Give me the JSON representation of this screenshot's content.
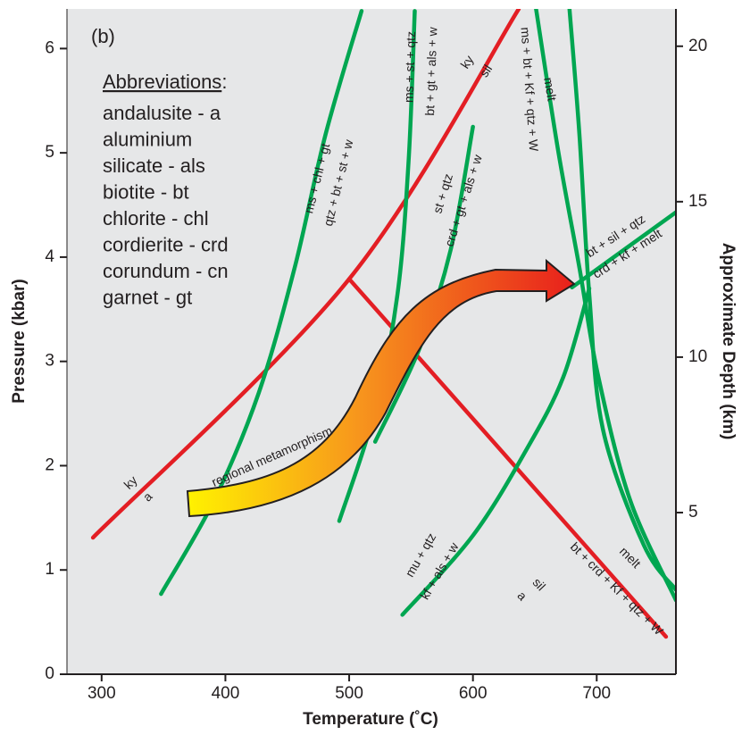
{
  "chart_data": {
    "type": "line",
    "panel_label": "(b)",
    "xlabel": "Temperature (˚C)",
    "ylabel": "Pressure (kbar)",
    "y2label": "Approximate Depth (km)",
    "xlim": [
      272,
      764
    ],
    "xticks": [
      300,
      400,
      500,
      600,
      700
    ],
    "ylim": [
      0,
      6.38
    ],
    "yticks": [
      0,
      1,
      2,
      3,
      4,
      5,
      6
    ],
    "y2lim": [
      -0.2,
      21.2
    ],
    "y2ticks": [
      5,
      10,
      15,
      20
    ],
    "series": [
      {
        "color": "#e31e24",
        "x": [
          293,
          500,
          637
        ],
        "values": [
          1.31,
          3.79,
          6.38
        ]
      },
      {
        "color": "#e31e24",
        "x": [
          500,
          756
        ],
        "values": [
          3.79,
          0.36
        ]
      },
      {
        "color": "#00a651",
        "x": [
          348,
          391,
          427,
          456,
          481,
          510
        ],
        "values": [
          0.77,
          1.67,
          2.7,
          3.9,
          5.18,
          6.36
        ]
      },
      {
        "color": "#00a651",
        "x": [
          492,
          521,
          539,
          548,
          553
        ],
        "values": [
          1.47,
          2.53,
          3.64,
          4.92,
          6.36
        ]
      },
      {
        "color": "#00a651",
        "x": [
          521,
          557,
          582,
          600
        ],
        "values": [
          2.23,
          3.13,
          4.07,
          5.25
        ]
      },
      {
        "color": "#00a651",
        "x": [
          543,
          600,
          644,
          673,
          694
        ],
        "values": [
          0.57,
          1.33,
          2.17,
          2.85,
          3.7
        ]
      },
      {
        "color": "#00a651",
        "x": [
          651,
          669,
          686,
          701,
          727,
          764
        ],
        "values": [
          6.38,
          5.01,
          3.9,
          2.87,
          1.67,
          0.71
        ]
      },
      {
        "color": "#00a651",
        "x": [
          678,
          686,
          694,
          705,
          738,
          764
        ],
        "values": [
          6.38,
          5.18,
          3.64,
          2.35,
          1.24,
          0.81
        ]
      },
      {
        "color": "#00a651",
        "x": [
          680,
          764
        ],
        "values": [
          3.71,
          4.43
        ]
      }
    ],
    "annotations": [
      "ky",
      "a",
      "ky",
      "sil",
      "sil",
      "a",
      "ms + chl + gt",
      "qtz + bt + st + w",
      "ms + st + qtz",
      "bt + gt + als + w",
      "st + qtz",
      "crd + gt + als + w",
      "ms + bt + Kf + qtz + W",
      "melt",
      "bt + sil + qtz",
      "crd + kf + melt",
      "mu + qtz",
      "kf + als + w",
      "melt",
      "bt + crd + Kf + qtz + W",
      "regional metamorphism"
    ],
    "abbreviations": {
      "heading": "Abbreviations",
      "heading_suffix": ":",
      "items": [
        "andalusite - a",
        "aluminium",
        "silicate - als",
        "biotite - bt",
        "chlorite - chl",
        "cordierite - crd",
        "corundum - cn",
        "garnet - gt"
      ]
    }
  }
}
